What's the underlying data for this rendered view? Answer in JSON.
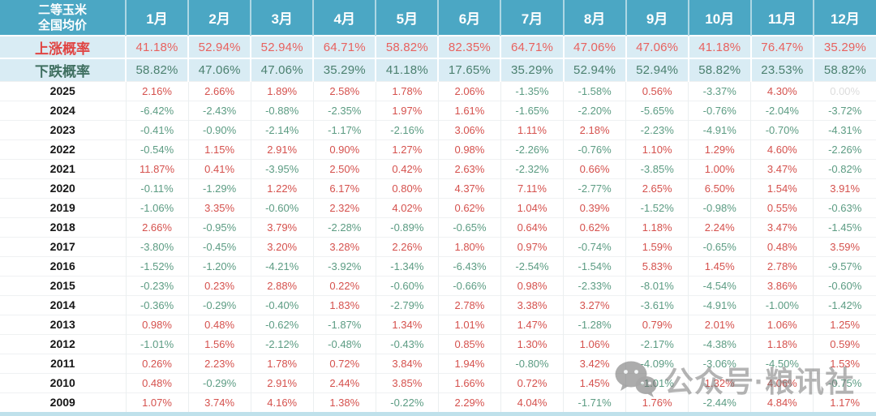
{
  "header": {
    "corner_line1": "二等玉米",
    "corner_line2": "全国均价"
  },
  "rows": {
    "rise_label": "上涨概率",
    "fall_label": "下跌概率"
  },
  "watermark": {
    "text": "公众号·粮讯社",
    "icon": "wechat-icon"
  },
  "colors": {
    "header_bg": "#4BA7C4",
    "prob_row_bg": "#D9ECF4",
    "rise_label": "#E04543",
    "rise_value": "#E8625F",
    "fall_label": "#3F6F60",
    "fall_value": "#4B806F",
    "positive_value": "#D5514D",
    "negative_value": "#5C9C83",
    "muted_value": "#DCDCDC",
    "bottom_strip": "#BFE1EB"
  },
  "chart_data": {
    "type": "table",
    "title": "二等玉米 全国均价",
    "months": [
      "1月",
      "2月",
      "3月",
      "4月",
      "5月",
      "6月",
      "7月",
      "8月",
      "9月",
      "10月",
      "11月",
      "12月"
    ],
    "rise_probability_pct": [
      41.18,
      52.94,
      52.94,
      64.71,
      58.82,
      82.35,
      64.71,
      47.06,
      47.06,
      41.18,
      76.47,
      35.29
    ],
    "fall_probability_pct": [
      58.82,
      47.06,
      47.06,
      35.29,
      41.18,
      17.65,
      35.29,
      52.94,
      52.94,
      58.82,
      23.53,
      58.82
    ],
    "yearly_monthly_change_pct": [
      {
        "year": "2025",
        "values": [
          2.16,
          2.66,
          1.89,
          2.58,
          1.78,
          2.06,
          -1.35,
          -1.58,
          0.56,
          -3.37,
          4.3,
          0.0
        ]
      },
      {
        "year": "2024",
        "values": [
          -6.42,
          -2.43,
          -0.88,
          -2.35,
          1.97,
          1.61,
          -1.65,
          -2.2,
          -5.65,
          -0.76,
          -2.04,
          -3.72
        ]
      },
      {
        "year": "2023",
        "values": [
          -0.41,
          -0.9,
          -2.14,
          -1.17,
          -2.16,
          3.06,
          1.11,
          2.18,
          -2.23,
          -4.91,
          -0.7,
          -4.31
        ]
      },
      {
        "year": "2022",
        "values": [
          -0.54,
          1.15,
          2.91,
          0.9,
          1.27,
          0.98,
          -2.26,
          -0.76,
          1.1,
          1.29,
          4.6,
          -2.26
        ]
      },
      {
        "year": "2021",
        "values": [
          11.87,
          0.41,
          -3.95,
          2.5,
          0.42,
          2.63,
          -2.32,
          0.66,
          -3.85,
          1.0,
          3.47,
          -0.82
        ]
      },
      {
        "year": "2020",
        "values": [
          -0.11,
          -1.29,
          1.22,
          6.17,
          0.8,
          4.37,
          7.11,
          -2.77,
          2.65,
          6.5,
          1.54,
          3.91
        ]
      },
      {
        "year": "2019",
        "values": [
          -1.06,
          3.35,
          -0.6,
          2.32,
          4.02,
          0.62,
          1.04,
          0.39,
          -1.52,
          -0.98,
          0.55,
          -0.63
        ]
      },
      {
        "year": "2018",
        "values": [
          2.66,
          -0.95,
          3.79,
          -2.28,
          -0.89,
          -0.65,
          0.64,
          0.62,
          1.18,
          2.24,
          3.47,
          -1.45
        ]
      },
      {
        "year": "2017",
        "values": [
          -3.8,
          -0.45,
          3.2,
          3.28,
          2.26,
          1.8,
          0.97,
          -0.74,
          1.59,
          -0.65,
          0.48,
          3.59
        ]
      },
      {
        "year": "2016",
        "values": [
          -1.52,
          -1.2,
          -4.21,
          -3.92,
          -1.34,
          -6.43,
          -2.54,
          -1.54,
          5.83,
          1.45,
          2.78,
          -9.57
        ]
      },
      {
        "year": "2015",
        "values": [
          -0.23,
          0.23,
          2.88,
          0.22,
          -0.6,
          -0.66,
          0.98,
          -2.33,
          -8.01,
          -4.54,
          3.86,
          -0.6
        ]
      },
      {
        "year": "2014",
        "values": [
          -0.36,
          -0.29,
          -0.4,
          1.83,
          -2.79,
          2.78,
          3.38,
          3.27,
          -3.61,
          -4.91,
          -1.0,
          -1.42
        ]
      },
      {
        "year": "2013",
        "values": [
          0.98,
          0.48,
          -0.62,
          -1.87,
          1.34,
          1.01,
          1.47,
          -1.28,
          0.79,
          2.01,
          1.06,
          1.25
        ]
      },
      {
        "year": "2012",
        "values": [
          -1.01,
          1.56,
          -2.12,
          -0.48,
          -0.43,
          0.85,
          1.3,
          1.06,
          -2.17,
          -4.38,
          1.18,
          0.59
        ]
      },
      {
        "year": "2011",
        "values": [
          0.26,
          2.23,
          1.78,
          0.72,
          3.84,
          1.94,
          -0.8,
          3.42,
          -4.09,
          -3.06,
          -4.5,
          1.53
        ]
      },
      {
        "year": "2010",
        "values": [
          0.48,
          -0.29,
          2.91,
          2.44,
          3.85,
          1.66,
          0.72,
          1.45,
          -1.01,
          1.32,
          4.06,
          -0.75
        ]
      },
      {
        "year": "2009",
        "values": [
          1.07,
          3.74,
          4.16,
          1.38,
          -0.22,
          2.29,
          4.04,
          -1.71,
          1.76,
          -2.44,
          4.84,
          1.17
        ]
      }
    ]
  }
}
